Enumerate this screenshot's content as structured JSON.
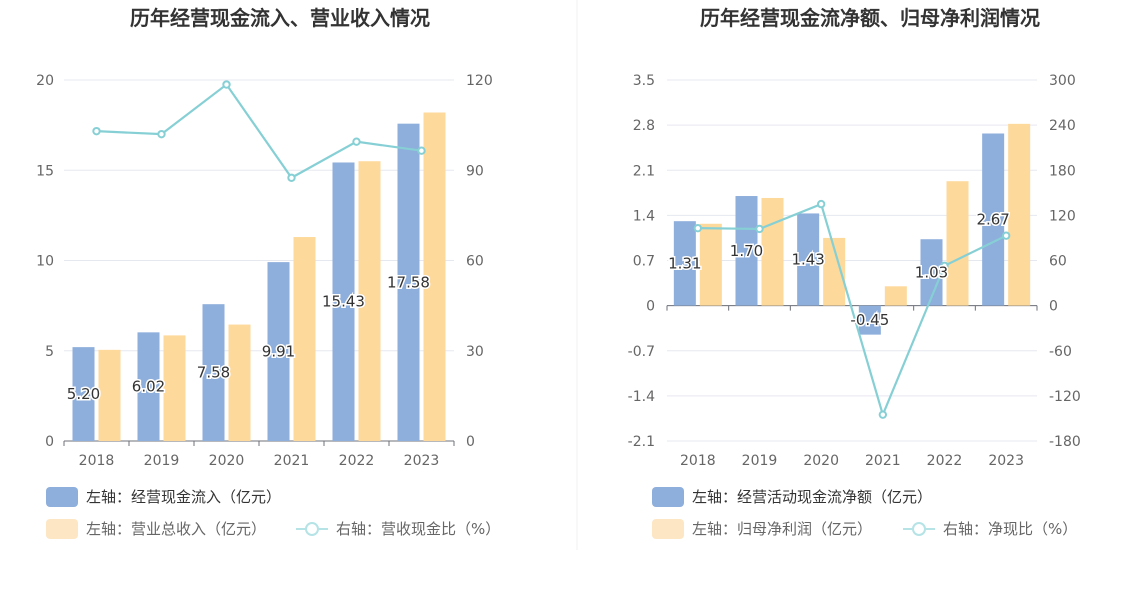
{
  "chart_data": [
    {
      "type": "bar",
      "title": "历年经营现金流入、营业收入情况",
      "categories": [
        "2018",
        "2019",
        "2020",
        "2021",
        "2022",
        "2023"
      ],
      "y_left": {
        "ticks": [
          "0",
          "5",
          "10",
          "15",
          "20"
        ],
        "range": [
          0,
          20
        ]
      },
      "y_right": {
        "ticks": [
          "0",
          "30",
          "60",
          "90",
          "120"
        ],
        "range": [
          0,
          120
        ]
      },
      "series": [
        {
          "name": "左轴：经营现金流入（亿元）",
          "type": "bar",
          "axis": "left",
          "color": "#8eaedb",
          "values": [
            5.2,
            6.02,
            7.58,
            9.91,
            15.43,
            17.58
          ],
          "labels": [
            "5.20",
            "6.02",
            "7.58",
            "9.91",
            "15.43",
            "17.58"
          ]
        },
        {
          "name": "左轴：营业总收入（亿元）",
          "type": "bar",
          "axis": "left",
          "color": "#fdd99b",
          "values": [
            5.05,
            5.85,
            6.45,
            11.3,
            15.5,
            18.2
          ]
        },
        {
          "name": "右轴：营收现金比（%）",
          "type": "line",
          "axis": "right",
          "color": "#86d0d5",
          "values": [
            103,
            102,
            118.5,
            87.5,
            99.5,
            96.5
          ]
        }
      ]
    },
    {
      "type": "bar",
      "title": "历年经营现金流净额、归母净利润情况",
      "categories": [
        "2018",
        "2019",
        "2020",
        "2021",
        "2022",
        "2023"
      ],
      "y_left": {
        "ticks": [
          "-2.1",
          "-1.4",
          "-0.7",
          "0",
          "0.7",
          "1.4",
          "2.1",
          "2.8",
          "3.5"
        ],
        "range": [
          -2.1,
          3.5
        ]
      },
      "y_right": {
        "ticks": [
          "-180",
          "-120",
          "-60",
          "0",
          "60",
          "120",
          "180",
          "240",
          "300"
        ],
        "range": [
          -180,
          300
        ]
      },
      "series": [
        {
          "name": "左轴：经营活动现金流净额（亿元）",
          "type": "bar",
          "axis": "left",
          "color": "#8eaedb",
          "values": [
            1.31,
            1.7,
            1.43,
            -0.45,
            1.03,
            2.67
          ],
          "labels": [
            "1.31",
            "1.70",
            "1.43",
            "-0.45",
            "1.03",
            "2.67"
          ]
        },
        {
          "name": "左轴：归母净利润（亿元）",
          "type": "bar",
          "axis": "left",
          "color": "#fdd99b",
          "values": [
            1.27,
            1.67,
            1.05,
            0.3,
            1.93,
            2.82
          ]
        },
        {
          "name": "右轴：净现比（%）",
          "type": "line",
          "axis": "right",
          "color": "#86d0d5",
          "values": [
            103,
            102,
            135,
            -145,
            53,
            93
          ]
        }
      ]
    }
  ]
}
